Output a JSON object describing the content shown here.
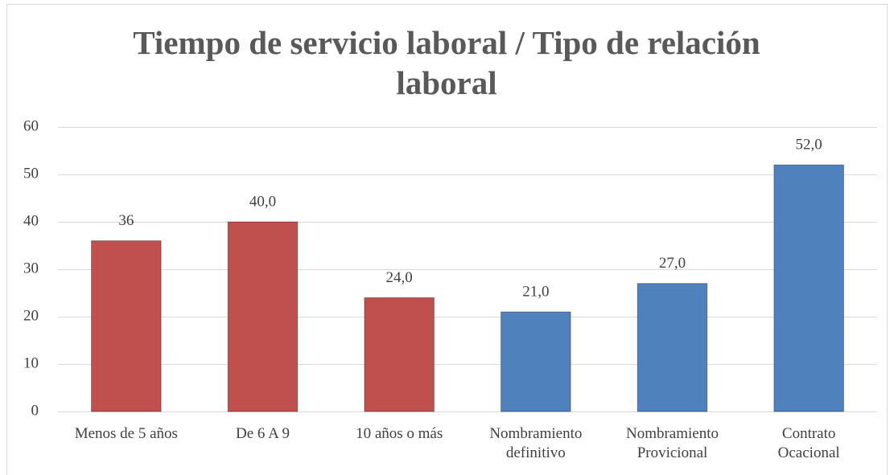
{
  "chart_data": {
    "type": "bar",
    "title": "Tiempo de servicio laboral / Tipo de relación laboral",
    "categories": [
      "Menos de 5 años",
      "De 6 A 9",
      "10 años o más",
      "Nombramiento\ndefinitivo",
      "Nombramiento\nProvicional",
      "Contrato\nOcacional"
    ],
    "values": [
      36,
      40,
      24,
      21,
      27,
      52
    ],
    "value_labels": [
      "36",
      "40,0",
      "24,0",
      "21,0",
      "27,0",
      "52,0"
    ],
    "colors": [
      "#c0504d",
      "#c0504d",
      "#c0504d",
      "#4f81bd",
      "#4f81bd",
      "#4f81bd"
    ],
    "ylim": [
      0,
      60
    ],
    "yticks": [
      0,
      10,
      20,
      30,
      40,
      50,
      60
    ],
    "grid": true
  }
}
